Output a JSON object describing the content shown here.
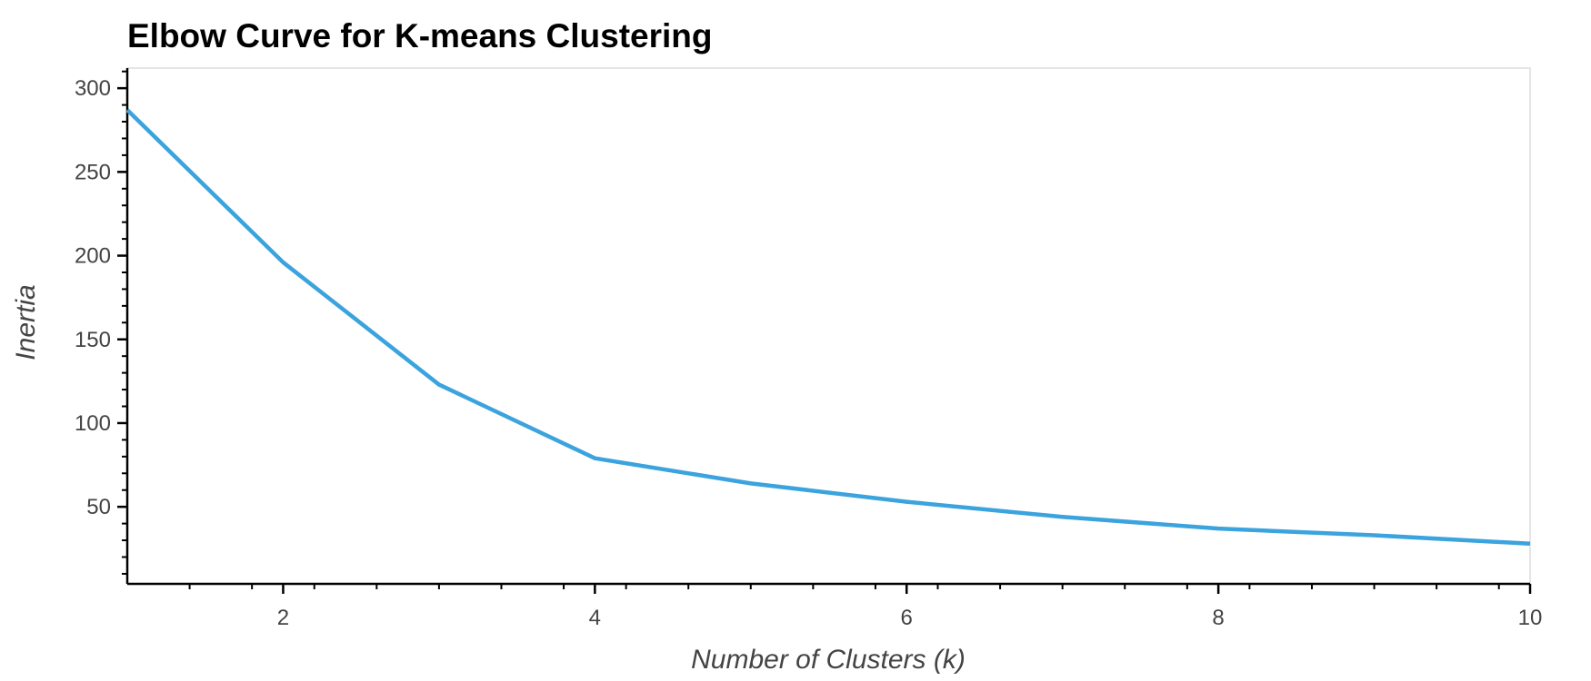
{
  "chart_data": {
    "type": "line",
    "title": "Elbow Curve for K-means Clustering",
    "xlabel": "Number of Clusters (k)",
    "ylabel": "Inertia",
    "x": [
      1,
      2,
      3,
      4,
      5,
      6,
      7,
      8,
      9,
      10
    ],
    "series": [
      {
        "values": [
          287,
          196,
          123,
          79,
          64,
          53,
          44,
          37,
          33,
          28
        ],
        "color": "#3ba3dd"
      }
    ],
    "xlim": [
      1,
      10
    ],
    "ylim": [
      4,
      312
    ],
    "xticks": [
      2,
      4,
      6,
      8,
      10
    ],
    "yticks": [
      50,
      100,
      150,
      200,
      250,
      300
    ],
    "grid": false,
    "legend": "none"
  }
}
